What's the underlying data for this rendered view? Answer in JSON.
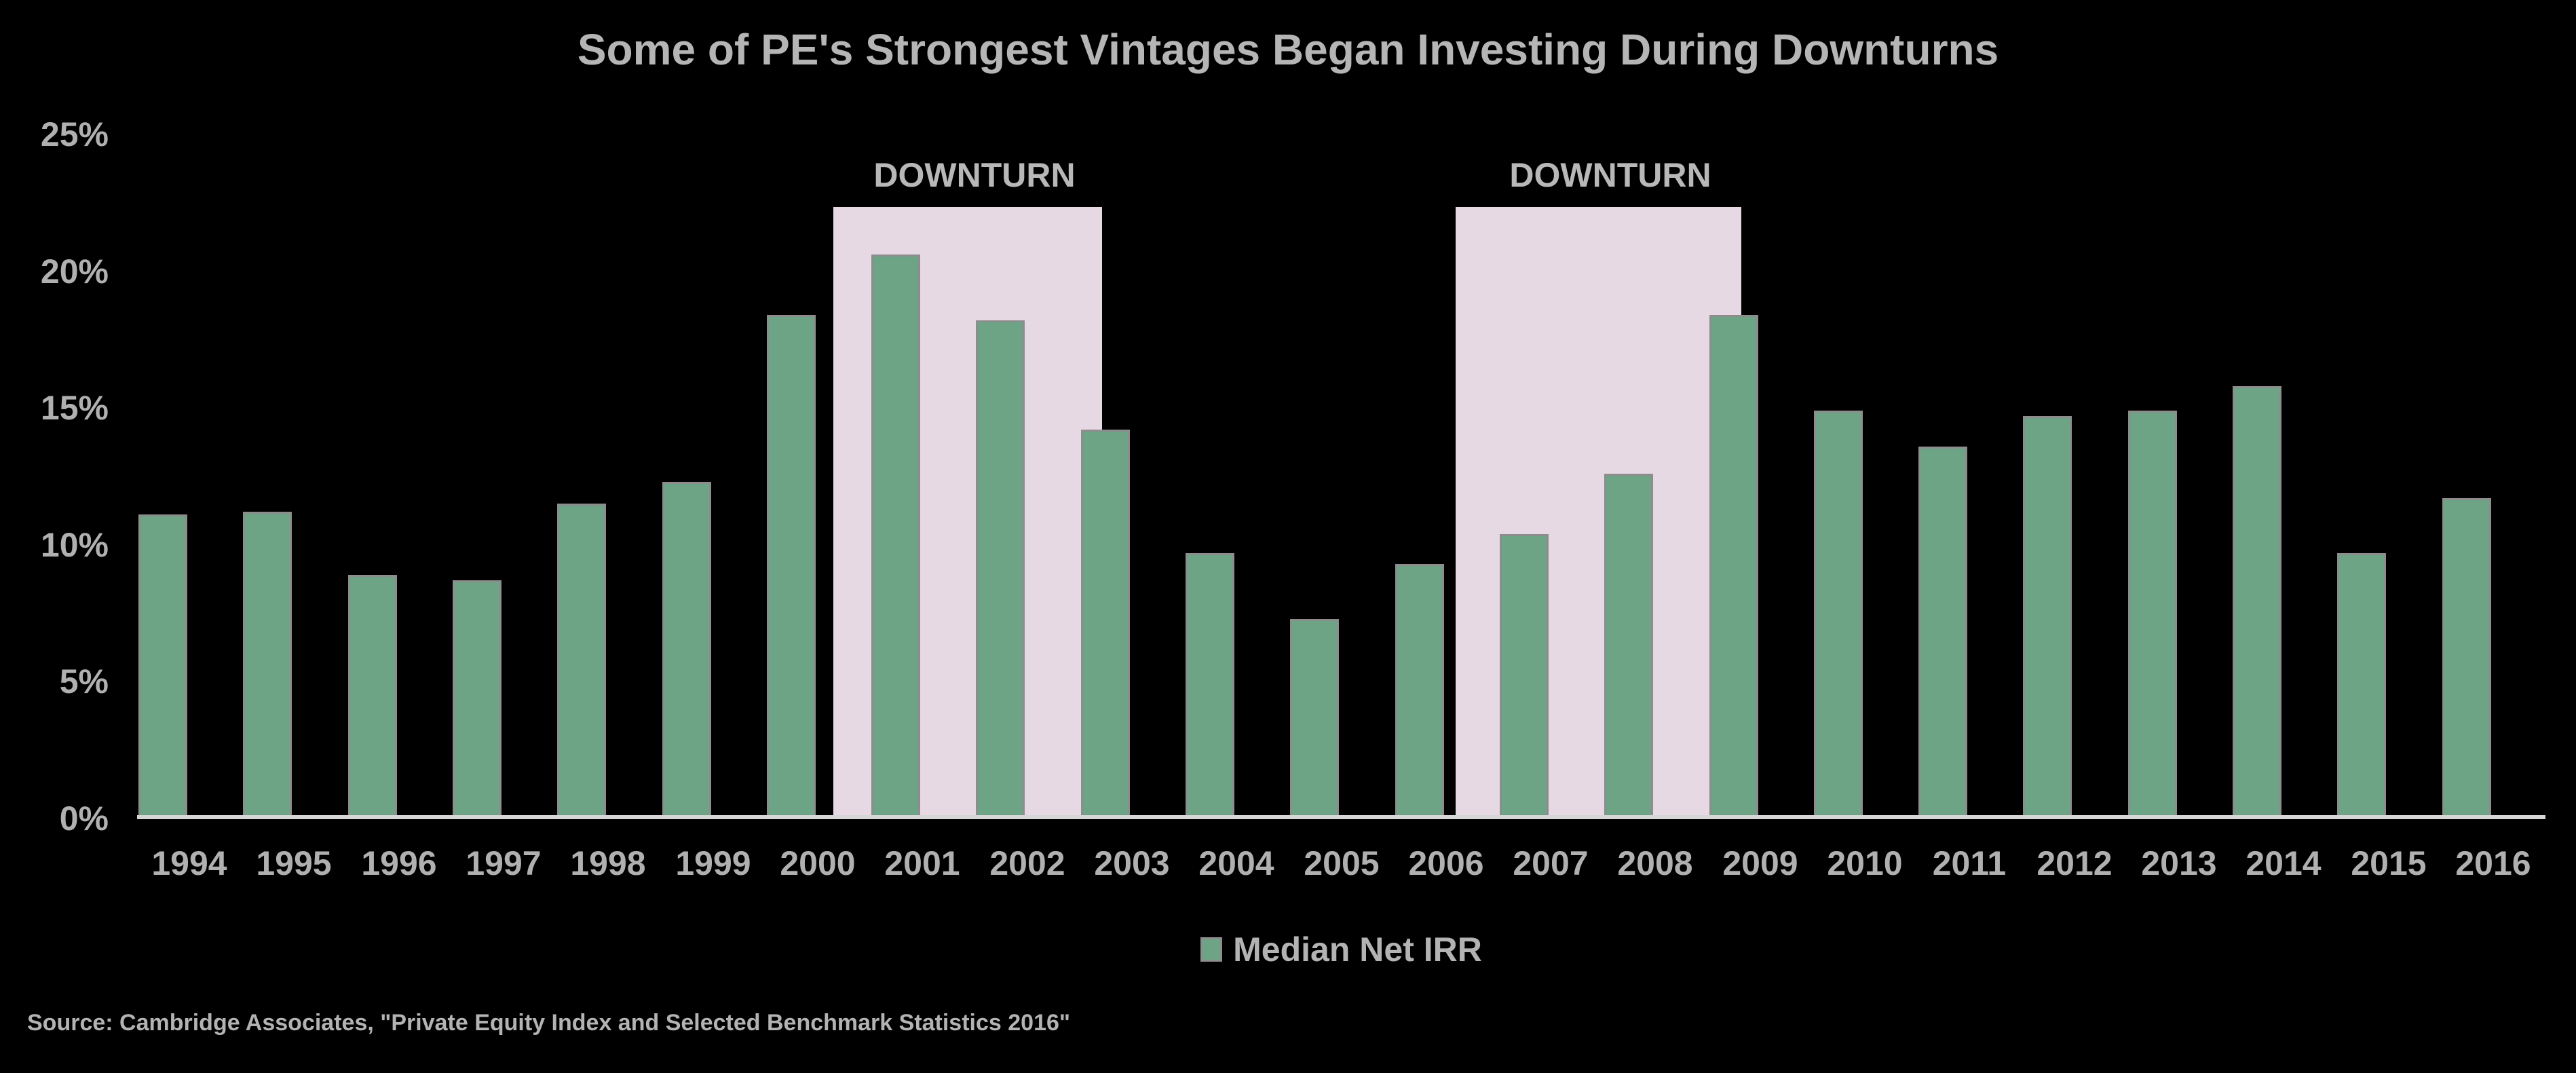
{
  "title": "Some of PE's Strongest Vintages Began Investing During Downturns",
  "legend": {
    "label": "Median Net IRR"
  },
  "source": "Source: Cambridge Associates, \"Private Equity Index and Selected Benchmark Statistics 2016\"",
  "colors": {
    "background": "#000000",
    "bar": "#6CA485",
    "bar_border": "#8D8D8D",
    "downturn_fill": "#E7D9E3",
    "text": "#B3B3B3",
    "axis_line": "#D6D6D6"
  },
  "chart_data": {
    "type": "bar",
    "title": "Some of PE's Strongest Vintages Began Investing During Downturns",
    "categories": [
      "1994",
      "1995",
      "1996",
      "1997",
      "1998",
      "1999",
      "2000",
      "2001",
      "2002",
      "2003",
      "2004",
      "2005",
      "2006",
      "2007",
      "2008",
      "2009",
      "2010",
      "2011",
      "2012",
      "2013",
      "2014",
      "2015",
      "2016"
    ],
    "series": [
      {
        "name": "Median Net IRR",
        "values": [
          11.1,
          11.2,
          8.9,
          8.7,
          11.5,
          12.3,
          18.4,
          20.6,
          18.2,
          14.2,
          9.7,
          7.3,
          9.3,
          10.4,
          12.6,
          18.4,
          14.9,
          13.6,
          14.7,
          14.9,
          15.8,
          9.7,
          11.7
        ]
      }
    ],
    "xlabel": "",
    "ylabel": "",
    "y_ticks": [
      "0%",
      "5%",
      "10%",
      "15%",
      "20%",
      "25%"
    ],
    "ylim": [
      0,
      25
    ],
    "grid": false,
    "legend_position": "bottom-center",
    "annotations": [
      {
        "label": "DOWNTURN",
        "from_year": 2001,
        "to_year": 2002
      },
      {
        "label": "DOWNTURN",
        "from_year": 2007,
        "to_year": 2008
      }
    ]
  }
}
